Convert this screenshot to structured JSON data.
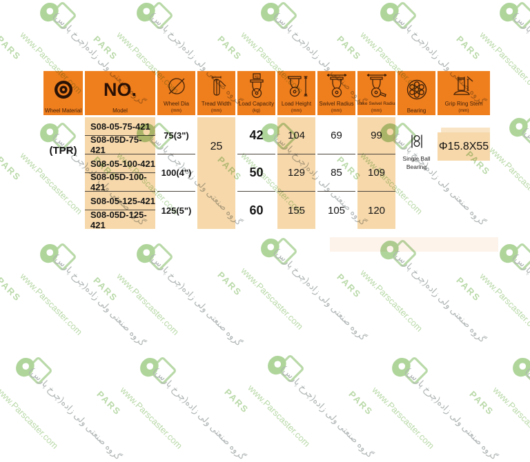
{
  "watermark": {
    "brand": "PARS",
    "url": "www.Parscaster.com",
    "persian": "گروه صنعتی ولی زاده(چرخ پارس)"
  },
  "colors": {
    "header_orange": "#ef7e1d",
    "cell_peach": "#f6d8ab",
    "watermark_green": "#b5d7a3",
    "watermark_gray": "#a9aeae"
  },
  "table": {
    "header": {
      "columns": [
        {
          "label": "Wheel Material",
          "sublabel": "",
          "icon": "wheel-material-icon"
        },
        {
          "title": "NO.",
          "label": "Model",
          "sublabel": "",
          "icon": ""
        },
        {
          "label": "Wheel Dia",
          "sublabel": "(mm)",
          "icon": "wheel-dia-icon"
        },
        {
          "label": "Tread Width",
          "sublabel": "(mm)",
          "icon": "tread-width-icon"
        },
        {
          "label": "Load Capacity",
          "sublabel": "(kg)",
          "icon": "load-capacity-icon"
        },
        {
          "label": "Load Height",
          "sublabel": "(mm)",
          "icon": "load-height-icon"
        },
        {
          "label": "Swivel Radius",
          "sublabel": "(mm)",
          "icon": "swivel-radius-icon"
        },
        {
          "label": "Brake Swivel Radius",
          "sublabel": "(mm)",
          "icon": "brake-swivel-radius-icon"
        },
        {
          "label": "Bearing",
          "sublabel": "",
          "icon": "bearing-icon"
        },
        {
          "label": "Grip Ring Stem",
          "sublabel": "(mm)",
          "icon": "grip-ring-stem-icon"
        }
      ]
    },
    "material": "(TPR)",
    "tread_width_mm": "25",
    "models": [
      "S08-05-75-421",
      "S08-05D-75-421",
      "S08-05-100-421",
      "S08-05D-100-421",
      "S08-05-125-421",
      "S08-05D-125-421"
    ],
    "groups": [
      {
        "wheel_dia": "75(3\")",
        "load_capacity": "42",
        "load_height": "104",
        "swivel_radius": "69",
        "brake_swivel_radius": "99"
      },
      {
        "wheel_dia": "100(4\")",
        "load_capacity": "50",
        "load_height": "129",
        "swivel_radius": "85",
        "brake_swivel_radius": "109"
      },
      {
        "wheel_dia": "125(5\")",
        "load_capacity": "60",
        "load_height": "155",
        "swivel_radius": "105",
        "brake_swivel_radius": "120"
      }
    ],
    "bearing": {
      "line1": "Single Ball",
      "line2": "Bearing"
    },
    "grip_ring_stem": "Φ15.8X55"
  }
}
